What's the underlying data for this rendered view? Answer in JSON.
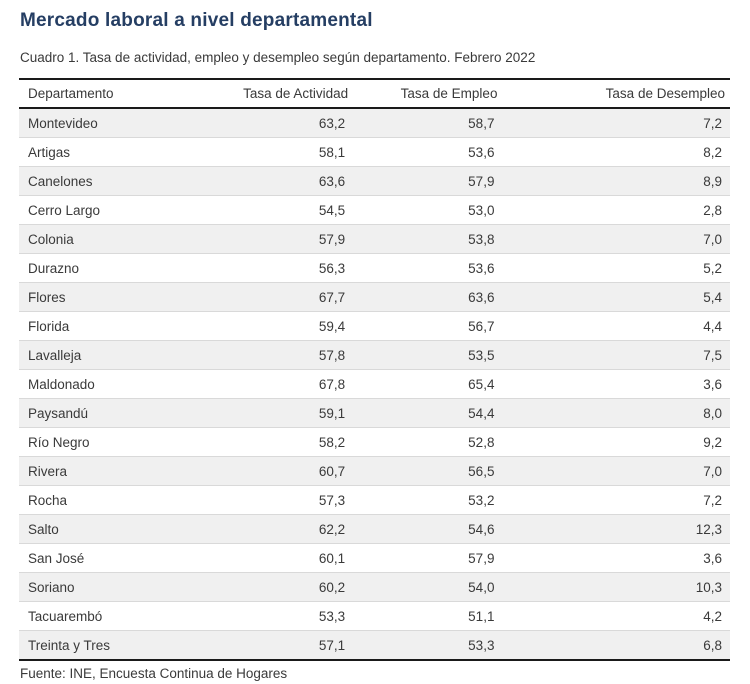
{
  "page": {
    "title": "Mercado laboral a nivel departamental",
    "caption": "Cuadro 1. Tasa de actividad, empleo y desempleo según departamento. Febrero 2022",
    "source": "Fuente: INE, Encuesta Continua de Hogares"
  },
  "colors": {
    "title": "#253e63",
    "text": "#3a3a3a",
    "stripe": "#f0f0f0",
    "heavy_border": "#1a1a1a",
    "row_border": "#d9d9d9"
  },
  "table": {
    "columns": [
      "Departamento",
      "Tasa de Actividad",
      "Tasa de Empleo",
      "Tasa de Desempleo"
    ],
    "rows": [
      [
        "Montevideo",
        "63,2",
        "58,7",
        "7,2"
      ],
      [
        "Artigas",
        "58,1",
        "53,6",
        "8,2"
      ],
      [
        "Canelones",
        "63,6",
        "57,9",
        "8,9"
      ],
      [
        "Cerro Largo",
        "54,5",
        "53,0",
        "2,8"
      ],
      [
        "Colonia",
        "57,9",
        "53,8",
        "7,0"
      ],
      [
        "Durazno",
        "56,3",
        "53,6",
        "5,2"
      ],
      [
        "Flores",
        "67,7",
        "63,6",
        "5,4"
      ],
      [
        "Florida",
        "59,4",
        "56,7",
        "4,4"
      ],
      [
        "Lavalleja",
        "57,8",
        "53,5",
        "7,5"
      ],
      [
        "Maldonado",
        "67,8",
        "65,4",
        "3,6"
      ],
      [
        "Paysandú",
        "59,1",
        "54,4",
        "8,0"
      ],
      [
        "Río Negro",
        "58,2",
        "52,8",
        "9,2"
      ],
      [
        "Rivera",
        "60,7",
        "56,5",
        "7,0"
      ],
      [
        "Rocha",
        "57,3",
        "53,2",
        "7,2"
      ],
      [
        "Salto",
        "62,2",
        "54,6",
        "12,3"
      ],
      [
        "San José",
        "60,1",
        "57,9",
        "3,6"
      ],
      [
        "Soriano",
        "60,2",
        "54,0",
        "10,3"
      ],
      [
        "Tacuarembó",
        "53,3",
        "51,1",
        "4,2"
      ],
      [
        "Treinta y Tres",
        "57,1",
        "53,3",
        "6,8"
      ]
    ]
  }
}
